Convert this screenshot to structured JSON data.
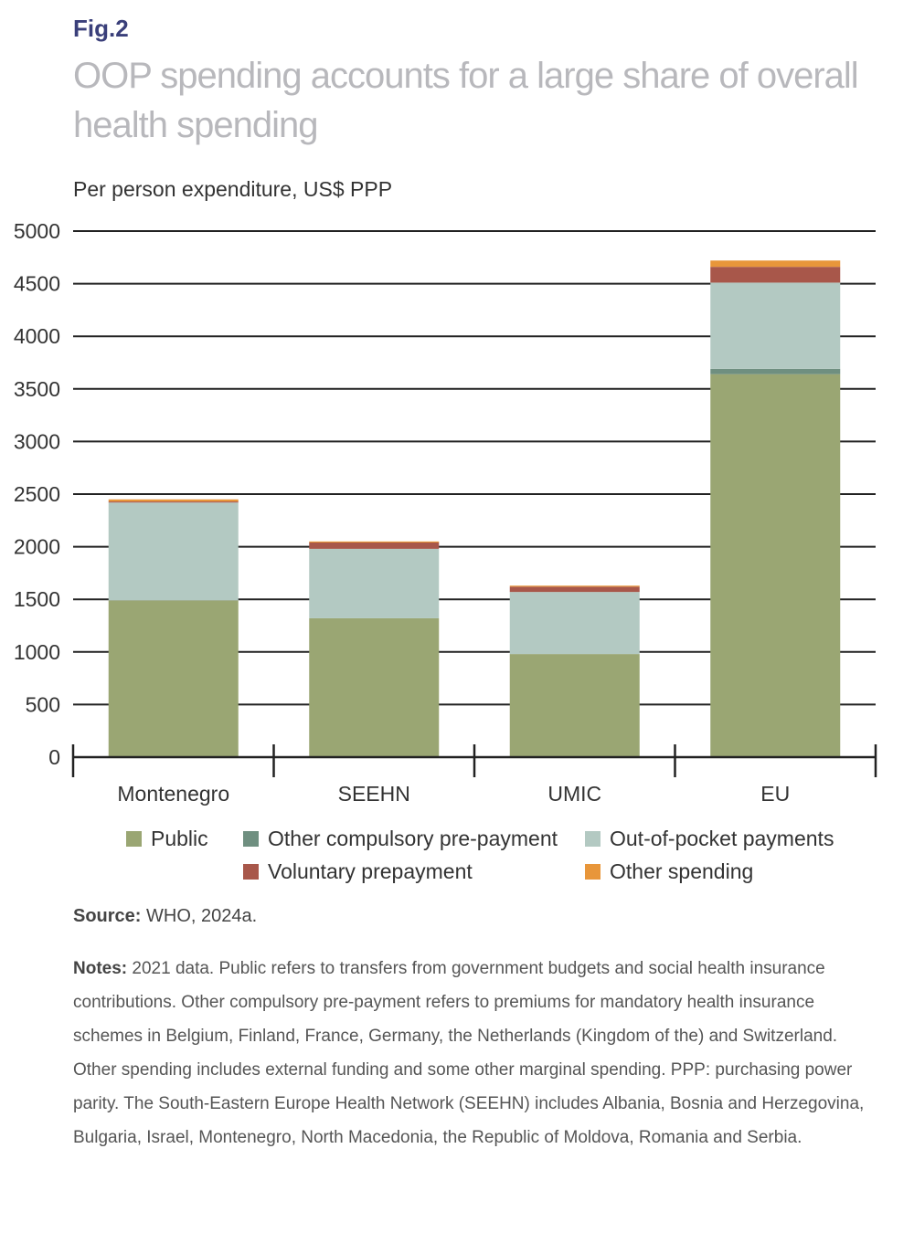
{
  "figure": {
    "label": "Fig.2",
    "title": "OOP spending accounts for a large share of overall health spending",
    "source_label": "Source:",
    "source_text": "WHO, 2024a.",
    "notes_label": "Notes:",
    "notes_text": "2021 data. Public refers to transfers from government budgets and social health insurance contributions. Other compulsory pre-payment refers to premiums for mandatory health insurance schemes in Belgium, Finland, France, Germany, the Netherlands (Kingdom of the) and Switzerland. Other spending includes external funding and some other marginal spending. PPP: purchasing power parity. The South-Eastern Europe Health Network (SEEHN) includes Albania, Bosnia and Herzegovina, Bulgaria, Israel, Montenegro, North Macedonia, the Republic of Moldova, Romania and Serbia."
  },
  "chart_data": {
    "type": "bar",
    "stacked": true,
    "title": "",
    "ylabel": "Per person expenditure, US$ PPP",
    "xlabel": "",
    "ylim": [
      0,
      5000
    ],
    "yticks": [
      0,
      500,
      1000,
      1500,
      2000,
      2500,
      3000,
      3500,
      4000,
      4500,
      5000
    ],
    "grid": true,
    "legend_position": "bottom",
    "categories": [
      "Montenegro",
      "SEEHN",
      "UMIC",
      "EU"
    ],
    "series": [
      {
        "name": "Public",
        "color": "#9aa673",
        "values": [
          1490,
          1320,
          980,
          3640
        ]
      },
      {
        "name": "Other compulsory pre-payment",
        "color": "#6f8f80",
        "values": [
          0,
          0,
          0,
          50
        ]
      },
      {
        "name": "Out-of-pocket payments",
        "color": "#b3c9c2",
        "values": [
          930,
          660,
          590,
          820
        ]
      },
      {
        "name": "Voluntary prepayment",
        "color": "#a8574a",
        "values": [
          10,
          60,
          50,
          150
        ]
      },
      {
        "name": "Other spending",
        "color": "#e8963a",
        "values": [
          20,
          10,
          10,
          60
        ]
      }
    ]
  }
}
